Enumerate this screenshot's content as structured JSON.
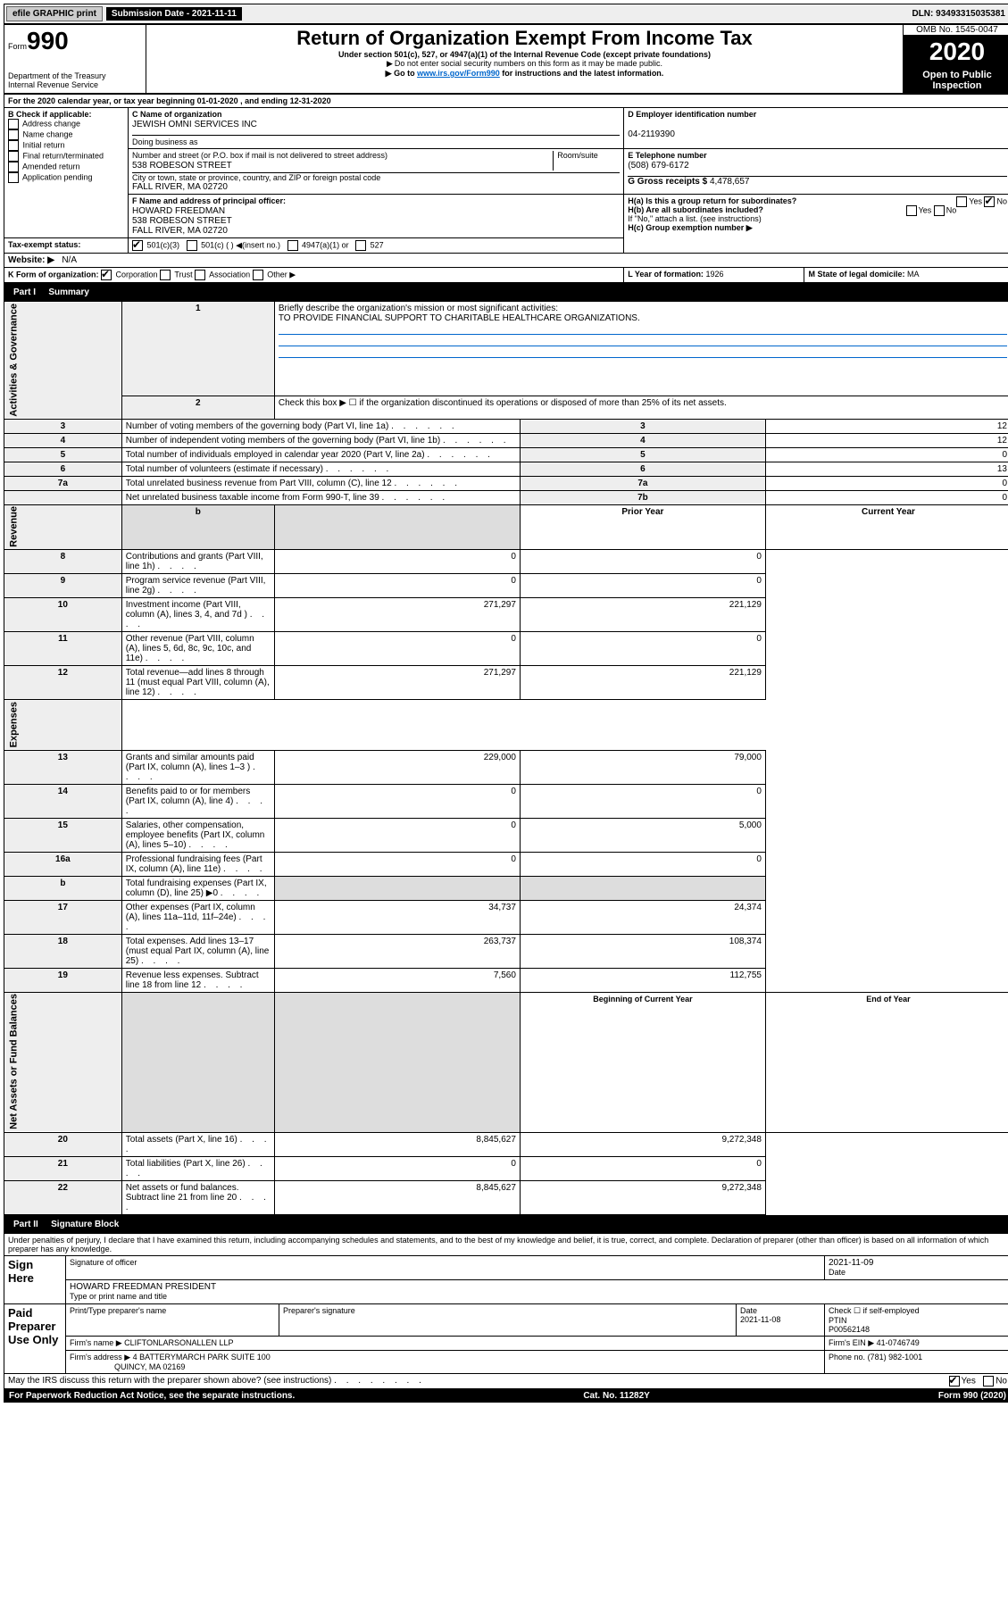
{
  "topbar": {
    "efile": "efile GRAPHIC print",
    "submission": "Submission Date - 2021-11-11",
    "dln": "DLN: 93493315035381"
  },
  "header": {
    "form_prefix": "Form",
    "form_number": "990",
    "title": "Return of Organization Exempt From Income Tax",
    "subtitle": "Under section 501(c), 527, or 4947(a)(1) of the Internal Revenue Code (except private foundations)",
    "note1": "Do not enter social security numbers on this form as it may be made public.",
    "note2_prefix": "Go to ",
    "note2_link": "www.irs.gov/Form990",
    "note2_suffix": " for instructions and the latest information.",
    "dept": "Department of the Treasury\nInternal Revenue Service",
    "omb": "OMB No. 1545-0047",
    "year": "2020",
    "open": "Open to Public Inspection"
  },
  "section_a": {
    "period": "For the 2020 calendar year, or tax year beginning 01-01-2020     , and ending 12-31-2020",
    "b_label": "B Check if applicable:",
    "b_opts": [
      "Address change",
      "Name change",
      "Initial return",
      "Final return/terminated",
      "Amended return",
      "Application pending"
    ],
    "c_label": "C Name of organization",
    "c_name": "JEWISH OMNI SERVICES INC",
    "dba_label": "Doing business as",
    "addr_label": "Number and street (or P.O. box if mail is not delivered to street address)",
    "room_label": "Room/suite",
    "addr": "538 ROBESON STREET",
    "city_label": "City or town, state or province, country, and ZIP or foreign postal code",
    "city": "FALL RIVER, MA  02720",
    "d_label": "D Employer identification number",
    "d_ein": "04-2119390",
    "e_label": "E Telephone number",
    "e_phone": "(508) 679-6172",
    "g_label": "G Gross receipts $",
    "g_amount": "4,478,657",
    "f_label": "F Name and address of principal officer:",
    "f_name": "HOWARD FREEDMAN",
    "f_addr1": "538 ROBESON STREET",
    "f_addr2": "FALL RIVER, MA  02720",
    "ha_label": "H(a)  Is this a group return for subordinates?",
    "hb_label": "H(b)  Are all subordinates included?",
    "h_note": "If \"No,\" attach a list. (see instructions)",
    "hc_label": "H(c)  Group exemption number ▶",
    "tax_exempt": "Tax-exempt status:",
    "te_501c3": "501(c)(3)",
    "te_501c": "501(c) (   ) ◀(insert no.)",
    "te_4947": "4947(a)(1) or",
    "te_527": "527",
    "website_label": "Website: ▶",
    "website": "N/A",
    "k_label": "K Form of organization:",
    "k_corp": "Corporation",
    "k_trust": "Trust",
    "k_assoc": "Association",
    "k_other": "Other ▶",
    "l_label": "L Year of formation:",
    "l_year": "1926",
    "m_label": "M State of legal domicile:",
    "m_state": "MA"
  },
  "part1": {
    "header": "Part I",
    "title": "Summary",
    "line1_label": "Briefly describe the organization's mission or most significant activities:",
    "line1_text": "TO PROVIDE FINANCIAL SUPPORT TO CHARITABLE HEALTHCARE ORGANIZATIONS.",
    "line2": "Check this box ▶ ☐  if the organization discontinued its operations or disposed of more than 25% of its net assets.",
    "gov_label": "Activities & Governance",
    "rev_label": "Revenue",
    "exp_label": "Expenses",
    "net_label": "Net Assets or Fund Balances",
    "rows_gov": [
      {
        "n": "3",
        "t": "Number of voting members of the governing body (Part VI, line 1a)",
        "r": "3",
        "v": "12"
      },
      {
        "n": "4",
        "t": "Number of independent voting members of the governing body (Part VI, line 1b)",
        "r": "4",
        "v": "12"
      },
      {
        "n": "5",
        "t": "Total number of individuals employed in calendar year 2020 (Part V, line 2a)",
        "r": "5",
        "v": "0"
      },
      {
        "n": "6",
        "t": "Total number of volunteers (estimate if necessary)",
        "r": "6",
        "v": "13"
      },
      {
        "n": "7a",
        "t": "Total unrelated business revenue from Part VIII, column (C), line 12",
        "r": "7a",
        "v": "0"
      },
      {
        "n": "",
        "t": "Net unrelated business taxable income from Form 990-T, line 39",
        "r": "7b",
        "v": "0"
      }
    ],
    "col_prior": "Prior Year",
    "col_current": "Current Year",
    "rows_rev": [
      {
        "n": "8",
        "t": "Contributions and grants (Part VIII, line 1h)",
        "p": "0",
        "c": "0"
      },
      {
        "n": "9",
        "t": "Program service revenue (Part VIII, line 2g)",
        "p": "0",
        "c": "0"
      },
      {
        "n": "10",
        "t": "Investment income (Part VIII, column (A), lines 3, 4, and 7d )",
        "p": "271,297",
        "c": "221,129"
      },
      {
        "n": "11",
        "t": "Other revenue (Part VIII, column (A), lines 5, 6d, 8c, 9c, 10c, and 11e)",
        "p": "0",
        "c": "0"
      },
      {
        "n": "12",
        "t": "Total revenue—add lines 8 through 11 (must equal Part VIII, column (A), line 12)",
        "p": "271,297",
        "c": "221,129"
      }
    ],
    "rows_exp": [
      {
        "n": "13",
        "t": "Grants and similar amounts paid (Part IX, column (A), lines 1–3 )",
        "p": "229,000",
        "c": "79,000"
      },
      {
        "n": "14",
        "t": "Benefits paid to or for members (Part IX, column (A), line 4)",
        "p": "0",
        "c": "0"
      },
      {
        "n": "15",
        "t": "Salaries, other compensation, employee benefits (Part IX, column (A), lines 5–10)",
        "p": "0",
        "c": "5,000"
      },
      {
        "n": "16a",
        "t": "Professional fundraising fees (Part IX, column (A), line 11e)",
        "p": "0",
        "c": "0"
      },
      {
        "n": "b",
        "t": "Total fundraising expenses (Part IX, column (D), line 25) ▶0",
        "p": "",
        "c": "",
        "shaded": true
      },
      {
        "n": "17",
        "t": "Other expenses (Part IX, column (A), lines 11a–11d, 11f–24e)",
        "p": "34,737",
        "c": "24,374"
      },
      {
        "n": "18",
        "t": "Total expenses. Add lines 13–17 (must equal Part IX, column (A), line 25)",
        "p": "263,737",
        "c": "108,374"
      },
      {
        "n": "19",
        "t": "Revenue less expenses. Subtract line 18 from line 12",
        "p": "7,560",
        "c": "112,755"
      }
    ],
    "col_begin": "Beginning of Current Year",
    "col_end": "End of Year",
    "rows_net": [
      {
        "n": "20",
        "t": "Total assets (Part X, line 16)",
        "p": "8,845,627",
        "c": "9,272,348"
      },
      {
        "n": "21",
        "t": "Total liabilities (Part X, line 26)",
        "p": "0",
        "c": "0"
      },
      {
        "n": "22",
        "t": "Net assets or fund balances. Subtract line 21 from line 20",
        "p": "8,845,627",
        "c": "9,272,348"
      }
    ]
  },
  "part2": {
    "header": "Part II",
    "title": "Signature Block",
    "perjury": "Under penalties of perjury, I declare that I have examined this return, including accompanying schedules and statements, and to the best of my knowledge and belief, it is true, correct, and complete. Declaration of preparer (other than officer) is based on all information of which preparer has any knowledge.",
    "sign_here": "Sign Here",
    "sig_officer": "Signature of officer",
    "sig_date": "2021-11-09",
    "date_label": "Date",
    "officer_name": "HOWARD FREEDMAN  PRESIDENT",
    "type_name": "Type or print name and title",
    "paid": "Paid Preparer Use Only",
    "prep_name_label": "Print/Type preparer's name",
    "prep_sig_label": "Preparer's signature",
    "prep_date_label": "Date",
    "prep_date": "2021-11-08",
    "self_emp": "Check ☐ if self-employed",
    "ptin_label": "PTIN",
    "ptin": "P00562148",
    "firm_name_label": "Firm's name   ▶",
    "firm_name": "CLIFTONLARSONALLEN LLP",
    "firm_ein_label": "Firm's EIN ▶",
    "firm_ein": "41-0746749",
    "firm_addr_label": "Firm's address ▶",
    "firm_addr": "4 BATTERYMARCH PARK SUITE 100",
    "firm_city": "QUINCY, MA  02169",
    "phone_label": "Phone no.",
    "phone": "(781) 982-1001",
    "discuss": "May the IRS discuss this return with the preparer shown above? (see instructions)",
    "yes": "Yes",
    "no": "No"
  },
  "footer": {
    "paperwork": "For Paperwork Reduction Act Notice, see the separate instructions.",
    "cat": "Cat. No. 11282Y",
    "form": "Form 990 (2020)"
  }
}
